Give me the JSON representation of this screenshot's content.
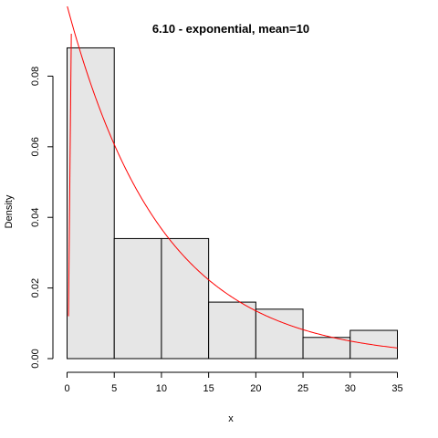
{
  "chart_data": {
    "type": "bar",
    "title": "6.10 - exponential, mean=10",
    "xlabel": "x",
    "ylabel": "Density",
    "xlim": [
      0,
      35
    ],
    "ylim": [
      0,
      0.092
    ],
    "grid": false,
    "bins": [
      {
        "from": 0,
        "to": 5,
        "value": 0.088
      },
      {
        "from": 5,
        "to": 10,
        "value": 0.034
      },
      {
        "from": 10,
        "to": 15,
        "value": 0.034
      },
      {
        "from": 15,
        "to": 20,
        "value": 0.016
      },
      {
        "from": 20,
        "to": 25,
        "value": 0.014
      },
      {
        "from": 25,
        "to": 30,
        "value": 0.006
      },
      {
        "from": 30,
        "to": 35,
        "value": 0.008
      }
    ],
    "x_ticks": [
      0,
      5,
      10,
      15,
      20,
      25,
      30,
      35
    ],
    "y_ticks": [
      0,
      0.02,
      0.04,
      0.06,
      0.08
    ],
    "x_tick_labels": [
      "0",
      "5",
      "10",
      "15",
      "20",
      "25",
      "30",
      "35"
    ],
    "y_tick_labels": [
      "0.00",
      "0.02",
      "0.04",
      "0.06",
      "0.08"
    ],
    "curve": {
      "type": "exponential-density",
      "mean": 10,
      "color": "#ff0000"
    },
    "bar_fill": "#e6e6e6",
    "bar_stroke": "#000000"
  }
}
